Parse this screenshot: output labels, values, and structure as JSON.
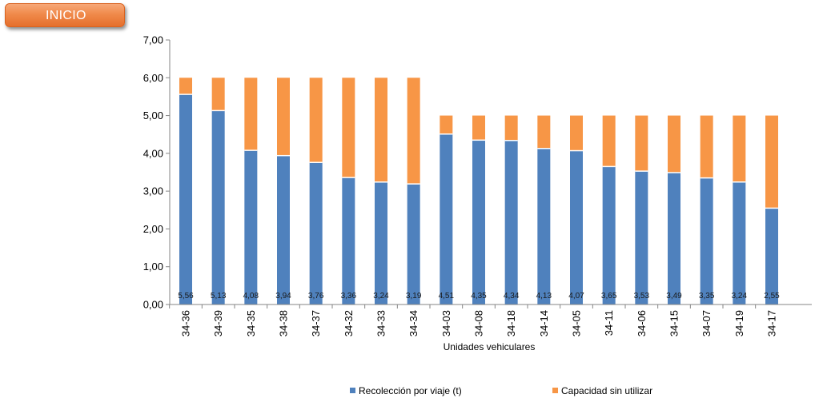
{
  "button": {
    "label": "INICIO"
  },
  "chart_data": {
    "type": "bar",
    "stacked": true,
    "categories": [
      "34-36",
      "34-39",
      "34-35",
      "34-38",
      "34-37",
      "34-32",
      "34-33",
      "34-34",
      "34-03",
      "34-08",
      "34-18",
      "34-14",
      "34-05",
      "34-11",
      "34-06",
      "34-15",
      "34-07",
      "34-19",
      "34-17"
    ],
    "series": [
      {
        "name": "Recolección por viaje (t)",
        "color": "#4f81bd",
        "values": [
          5.56,
          5.13,
          4.08,
          3.94,
          3.76,
          3.36,
          3.24,
          3.19,
          4.51,
          4.35,
          4.34,
          4.13,
          4.07,
          3.65,
          3.53,
          3.49,
          3.35,
          3.24,
          2.55
        ],
        "labels": [
          "5,56",
          "5,13",
          "4,08",
          "3,94",
          "3,76",
          "3,36",
          "3,24",
          "3,19",
          "4,51",
          "4,35",
          "4,34",
          "4,13",
          "4,07",
          "3,65",
          "3,53",
          "3,49",
          "3,35",
          "3,24",
          "2,55"
        ]
      },
      {
        "name": "Capacidad sin utilizar",
        "color": "#f79646",
        "values": [
          0.44,
          0.87,
          1.92,
          2.06,
          2.24,
          2.64,
          2.76,
          2.81,
          0.49,
          0.65,
          0.66,
          0.87,
          0.93,
          1.35,
          1.47,
          1.51,
          1.65,
          1.76,
          2.45
        ]
      }
    ],
    "xlabel": "Unidades vehiculares",
    "ylabel": "",
    "ylim": [
      0,
      7
    ],
    "yticks": [
      0,
      1,
      2,
      3,
      4,
      5,
      6,
      7
    ],
    "ytick_labels": [
      "0,00",
      "1,00",
      "2,00",
      "3,00",
      "4,00",
      "5,00",
      "6,00",
      "7,00"
    ],
    "grid": false,
    "legend_position": "bottom"
  }
}
